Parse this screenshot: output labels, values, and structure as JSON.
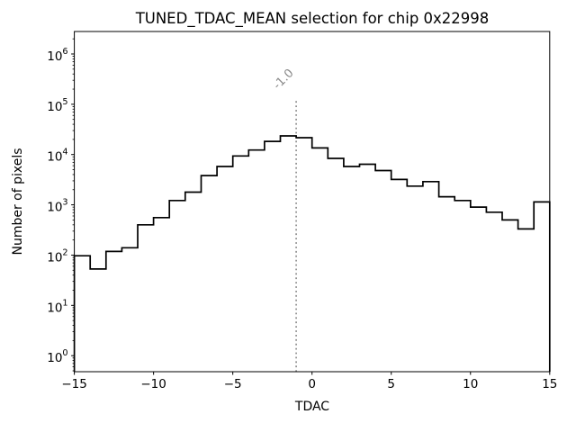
{
  "chart_data": {
    "type": "bar",
    "subtype": "step-histogram",
    "title": "TUNED_TDAC_MEAN selection for chip 0x22998",
    "xlabel": "TDAC",
    "ylabel": "Number of pixels",
    "yscale": "log",
    "xlim": [
      -15,
      15
    ],
    "ylim": [
      0.48,
      2800000
    ],
    "grid": false,
    "legend": "none",
    "bin_edges": [
      -15,
      -14,
      -13,
      -12,
      -11,
      -10,
      -9,
      -8,
      -7,
      -6,
      -5,
      -4,
      -3,
      -2,
      -1,
      0,
      1,
      2,
      3,
      4,
      5,
      6,
      7,
      8,
      9,
      10,
      11,
      12,
      13,
      14,
      15
    ],
    "counts": [
      97,
      53,
      118,
      140,
      400,
      556,
      1220,
      1790,
      3820,
      5780,
      9350,
      12300,
      18300,
      23500,
      21600,
      13500,
      8370,
      5780,
      6400,
      4800,
      3200,
      2360,
      2900,
      1450,
      1220,
      900,
      713,
      500,
      331,
      1140
    ],
    "x_major_ticks": [
      {
        "v": -15,
        "label": "−15"
      },
      {
        "v": -10,
        "label": "−10"
      },
      {
        "v": -5,
        "label": "−5"
      },
      {
        "v": 0,
        "label": "0"
      },
      {
        "v": 5,
        "label": "5"
      },
      {
        "v": 10,
        "label": "10"
      },
      {
        "v": 15,
        "label": "15"
      }
    ],
    "y_major_tick_exponents": [
      0,
      1,
      2,
      3,
      4,
      5,
      6
    ],
    "y_tick_base": "10",
    "vline": {
      "x": -1.0,
      "label": "-1.0",
      "style": "dotted"
    },
    "colors": {
      "hist_line": "#000000",
      "vline": "#7f7f7f",
      "annotation_text": "#888888",
      "axes": "#000000",
      "background": "#ffffff"
    }
  }
}
